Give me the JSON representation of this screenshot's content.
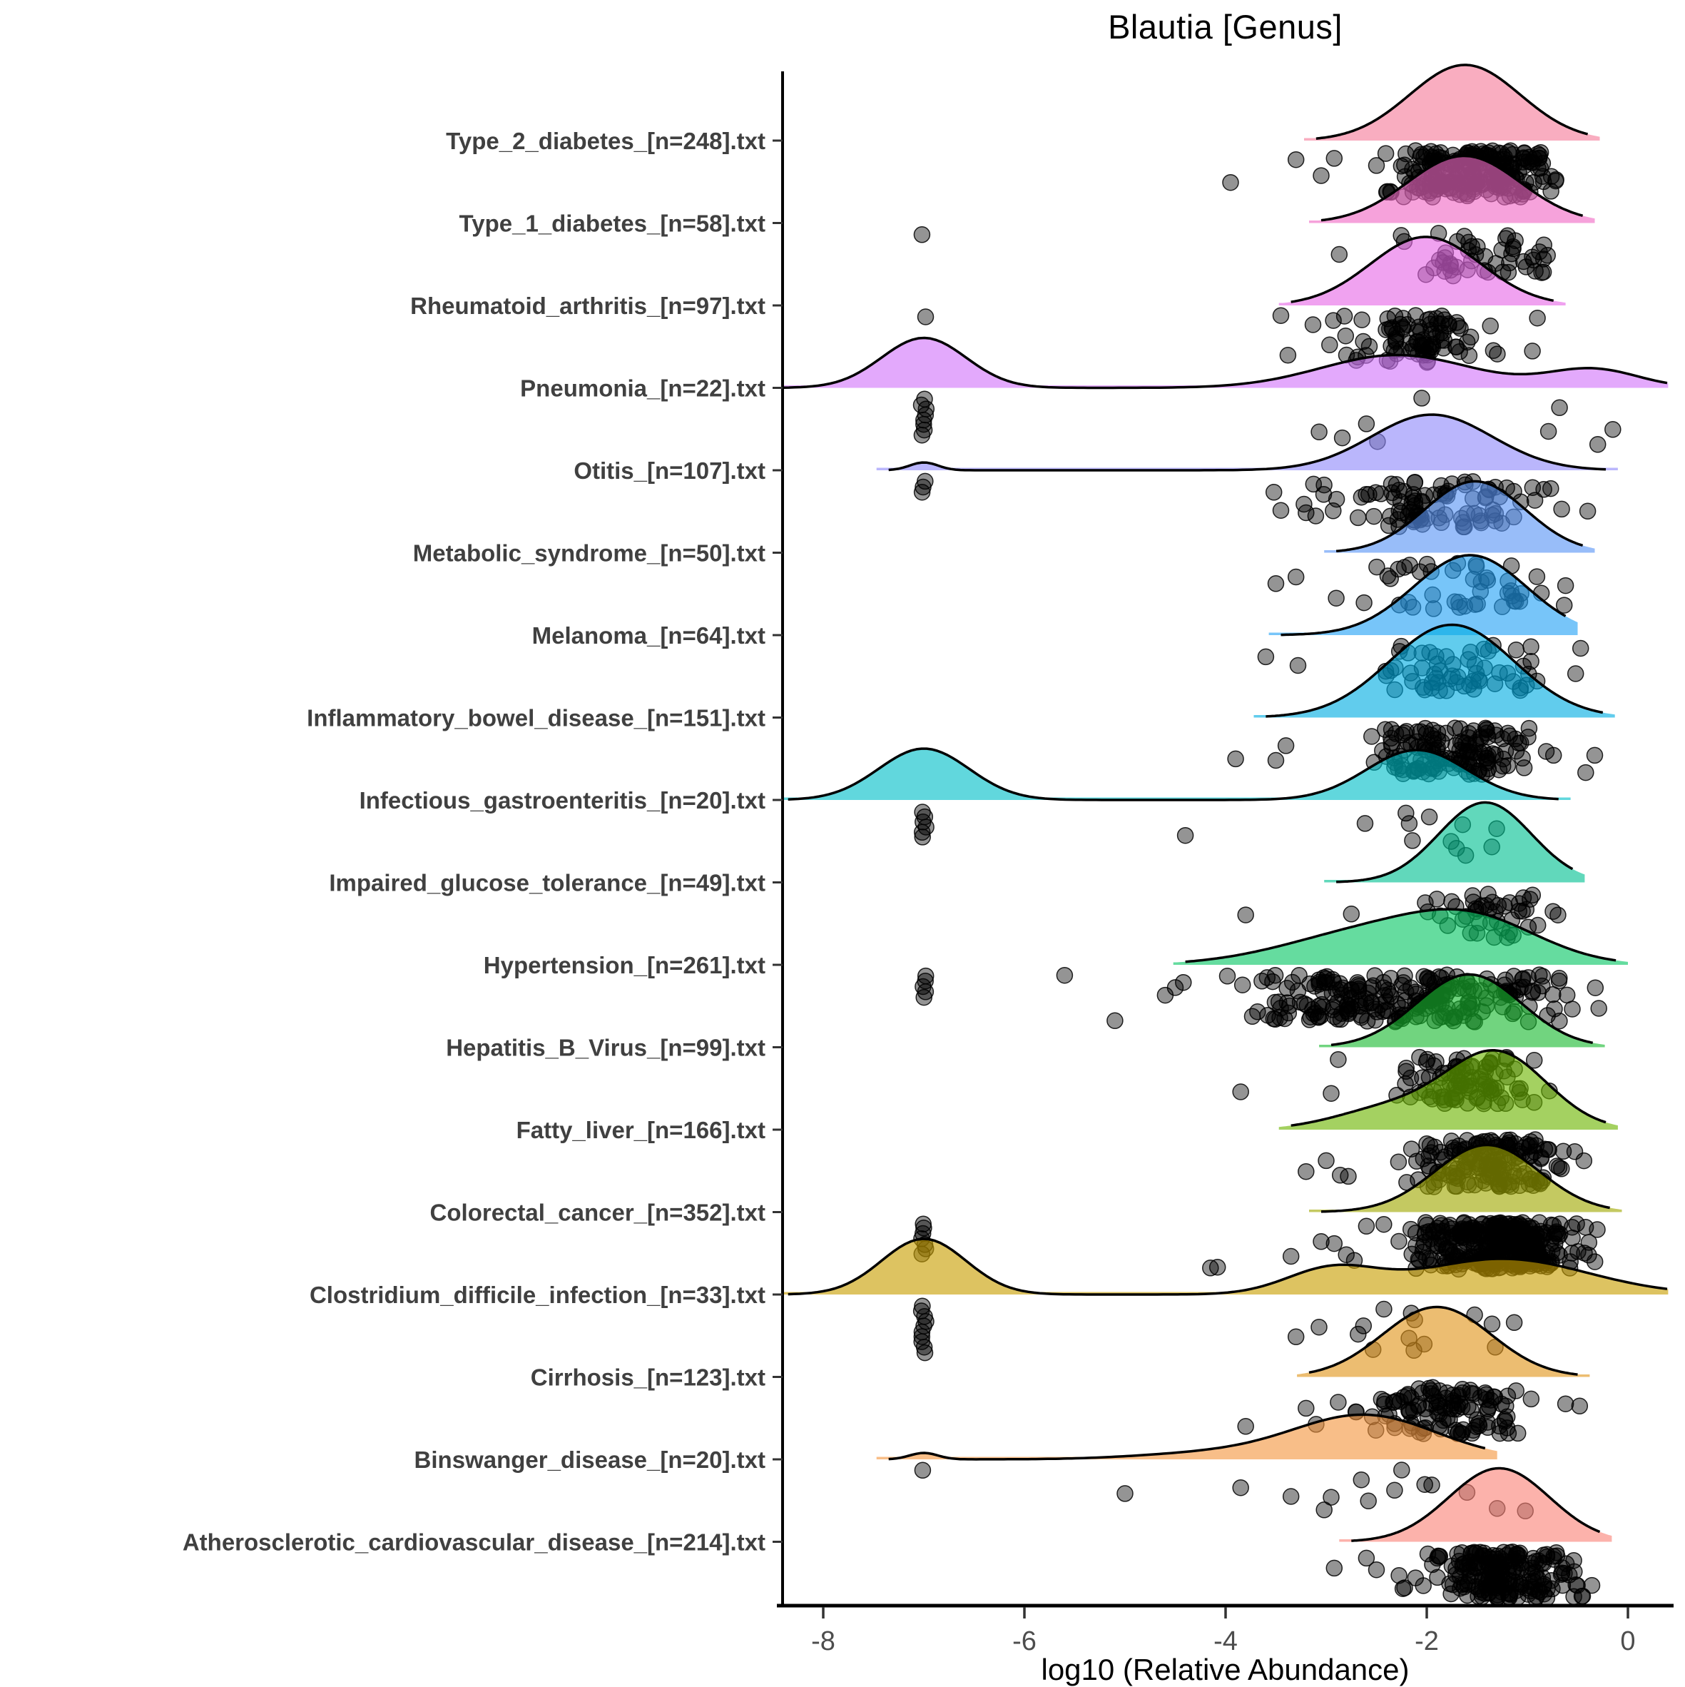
{
  "chart_data": {
    "type": "area",
    "variant": "ridgeline-raincloud (density ridges with jittered points below each baseline)",
    "title": "Blautia [Genus]",
    "xlabel": "log10 (Relative Abundance)",
    "ylabel": "",
    "xlim": [
      -8.4,
      0.4
    ],
    "x_ticks": [
      -8,
      -6,
      -4,
      -2,
      0
    ],
    "grid": "off",
    "legend": "none",
    "point_style": {
      "fill": "#000000",
      "fill_opacity": 0.42,
      "stroke": "#000000",
      "stroke_opacity": 0.85,
      "radius": 11
    },
    "ridge_style": {
      "stroke": "#000000",
      "stroke_width": 3.5,
      "fill_opacity": 0.62
    },
    "axis_color": "#000000",
    "tick_label_color": "#4d4d4d",
    "category_label_color": "#404040",
    "categories_top_to_bottom": [
      "Type_2_diabetes_[n=248].txt",
      "Type_1_diabetes_[n=58].txt",
      "Rheumatoid_arthritis_[n=97].txt",
      "Pneumonia_[n=22].txt",
      "Otitis_[n=107].txt",
      "Metabolic_syndrome_[n=50].txt",
      "Melanoma_[n=64].txt",
      "Inflammatory_bowel_disease_[n=151].txt",
      "Infectious_gastroenteritis_[n=20].txt",
      "Impaired_glucose_tolerance_[n=49].txt",
      "Hypertension_[n=261].txt",
      "Hepatitis_B_Virus_[n=99].txt",
      "Fatty_liver_[n=166].txt",
      "Colorectal_cancer_[n=352].txt",
      "Clostridium_difficile_infection_[n=33].txt",
      "Cirrhosis_[n=123].txt",
      "Binswanger_disease_[n=20].txt",
      "Atherosclerotic_cardiovascular_disease_[n=214].txt"
    ],
    "rows": [
      {
        "key": "type-2-diabetes",
        "label": "Type_2_diabetes_[n=248].txt",
        "n": 248,
        "color": "#F57A99",
        "span": [
          -3.1,
          -0.4
        ],
        "bumps": [
          {
            "c": -1.62,
            "s": 0.55,
            "h": 106
          }
        ],
        "stack_at_minus7": 0,
        "cluster": {
          "n": 235,
          "mean": -1.55,
          "sd": 0.42,
          "min": -3.05,
          "max": -0.68
        },
        "extra_points": [
          -3.95,
          -3.3,
          -3.05,
          -2.92
        ]
      },
      {
        "key": "type-1-diabetes",
        "label": "Type_1_diabetes_[n=58].txt",
        "n": 58,
        "color": "#F069C5",
        "span": [
          -3.05,
          -0.45
        ],
        "bumps": [
          {
            "c": -1.63,
            "s": 0.56,
            "h": 94
          }
        ],
        "stack_at_minus7": 1,
        "cluster": {
          "n": 46,
          "mean": -1.45,
          "sd": 0.36,
          "min": -2.6,
          "max": -0.82
        },
        "extra_points": [
          -2.87,
          -0.88,
          -0.84,
          -0.8
        ]
      },
      {
        "key": "rheumatoid-arthritis",
        "label": "Rheumatoid_arthritis_[n=97].txt",
        "n": 97,
        "color": "#E669E6",
        "span": [
          -3.35,
          -0.74
        ],
        "bumps": [
          {
            "c": -2.01,
            "s": 0.55,
            "h": 96
          }
        ],
        "stack_at_minus7": 1,
        "cluster": {
          "n": 88,
          "mean": -2.05,
          "sd": 0.36,
          "min": -3.15,
          "max": -1.05
        },
        "extra_points": [
          -3.45,
          -3.38,
          -0.95,
          -0.9
        ]
      },
      {
        "key": "pneumonia",
        "label": "Pneumonia_[n=22].txt",
        "n": 22,
        "color": "#D275FA",
        "span": [
          -8.4,
          0.39
        ],
        "bumps": [
          {
            "c": -7.0,
            "s": 0.42,
            "h": 70
          },
          {
            "c": -2.3,
            "s": 0.75,
            "h": 46
          },
          {
            "c": -0.35,
            "s": 0.45,
            "h": 26
          }
        ],
        "stack_at_minus7": 8,
        "cluster": {
          "n": 0
        },
        "extra_points": [
          -3.07,
          -2.84,
          -2.6,
          -2.49,
          -2.05,
          -0.79,
          -0.68,
          -0.3,
          -0.15
        ]
      },
      {
        "key": "otitis",
        "label": "Otitis_[n=107].txt",
        "n": 107,
        "color": "#8F89FA",
        "span": [
          -7.35,
          -0.22
        ],
        "bumps": [
          {
            "c": -7.0,
            "s": 0.14,
            "h": 11
          },
          {
            "c": -1.95,
            "s": 0.6,
            "h": 78
          }
        ],
        "stack_at_minus7": 3,
        "cluster": {
          "n": 96,
          "mean": -1.95,
          "sd": 0.5,
          "min": -3.3,
          "max": -0.45
        },
        "extra_points": [
          -3.52,
          -3.45,
          -0.4
        ]
      },
      {
        "key": "metabolic-syndrome",
        "label": "Metabolic_syndrome_[n=50].txt",
        "n": 50,
        "color": "#5994F6",
        "span": [
          -2.9,
          -0.45
        ],
        "bumps": [
          {
            "c": -1.52,
            "s": 0.5,
            "h": 100
          }
        ],
        "stack_at_minus7": 0,
        "cluster": {
          "n": 44,
          "mean": -1.6,
          "sd": 0.48,
          "min": -2.75,
          "max": -0.55
        },
        "extra_points": [
          -3.5,
          -3.3,
          -2.9
        ]
      },
      {
        "key": "melanoma",
        "label": "Melanoma_[n=64].txt",
        "n": 64,
        "color": "#23A1F6",
        "span": [
          -3.45,
          -0.62
        ],
        "bumps": [
          {
            "c": -1.57,
            "s": 0.56,
            "h": 112
          }
        ],
        "stack_at_minus7": 0,
        "cluster": {
          "n": 58,
          "mean": -1.7,
          "sd": 0.44,
          "min": -3.0,
          "max": -0.62
        },
        "extra_points": [
          -3.6,
          -3.28,
          -0.52,
          -0.47
        ]
      },
      {
        "key": "inflammatory-bowel-disease",
        "label": "Inflammatory_bowel_disease_[n=151].txt",
        "n": 151,
        "color": "#00ACE2",
        "span": [
          -3.6,
          -0.25
        ],
        "bumps": [
          {
            "c": -1.75,
            "s": 0.62,
            "h": 130
          }
        ],
        "stack_at_minus7": 0,
        "cluster": {
          "n": 140,
          "mean": -1.7,
          "sd": 0.38,
          "min": -2.85,
          "max": -0.7
        },
        "extra_points": [
          -3.9,
          -3.5,
          -3.4,
          -0.42,
          -0.33
        ]
      },
      {
        "key": "infectious-gastroenteritis",
        "label": "Infectious_gastroenteritis_[n=20].txt",
        "n": 20,
        "color": "#00BEC8",
        "span": [
          -8.35,
          -0.69
        ],
        "bumps": [
          {
            "c": -7.0,
            "s": 0.45,
            "h": 72
          },
          {
            "c": -2.1,
            "s": 0.5,
            "h": 70
          }
        ],
        "stack_at_minus7": 6,
        "cluster": {
          "n": 11,
          "mean": -2.1,
          "sd": 0.38,
          "min": -2.85,
          "max": -1.25
        },
        "extra_points": [
          -4.4
        ]
      },
      {
        "key": "impaired-glucose-tolerance",
        "label": "Impaired_glucose_tolerance_[n=49].txt",
        "n": 49,
        "color": "#00C091",
        "span": [
          -2.9,
          -0.55
        ],
        "bumps": [
          {
            "c": -1.42,
            "s": 0.46,
            "h": 112
          }
        ],
        "stack_at_minus7": 0,
        "cluster": {
          "n": 45,
          "mean": -1.42,
          "sd": 0.36,
          "min": -2.45,
          "max": -0.6
        },
        "extra_points": [
          -3.8,
          -2.75
        ]
      },
      {
        "key": "hypertension",
        "label": "Hypertension_[n=261].txt",
        "n": 261,
        "color": "#06C764",
        "span": [
          -4.4,
          -0.12
        ],
        "bumps": [
          {
            "c": -2.55,
            "s": 0.85,
            "h": 46
          },
          {
            "c": -1.5,
            "s": 0.65,
            "h": 52
          }
        ],
        "stack_at_minus7": 5,
        "cluster": {
          "n": 240,
          "mean": -2.15,
          "sd": 0.8,
          "min": -4.3,
          "max": -0.25
        },
        "extra_points": [
          -5.6,
          -5.1,
          -4.6,
          -4.5,
          -4.42
        ]
      },
      {
        "key": "hepatitis-b-virus",
        "label": "Hepatitis_B_Virus_[n=99].txt",
        "n": 99,
        "color": "#1AB930",
        "span": [
          -2.95,
          -0.35
        ],
        "bumps": [
          {
            "c": -1.58,
            "s": 0.52,
            "h": 102
          }
        ],
        "stack_at_minus7": 0,
        "cluster": {
          "n": 92,
          "mean": -1.58,
          "sd": 0.4,
          "min": -2.8,
          "max": -0.6
        },
        "extra_points": [
          -3.85,
          -2.95,
          -2.88
        ]
      },
      {
        "key": "fatty-liver",
        "label": "Fatty_liver_[n=166].txt",
        "n": 166,
        "color": "#6CB400",
        "span": [
          -3.35,
          -0.22
        ],
        "bumps": [
          {
            "c": -1.3,
            "s": 0.5,
            "h": 106
          },
          {
            "c": -2.35,
            "s": 0.55,
            "h": 30
          }
        ],
        "stack_at_minus7": 0,
        "cluster": {
          "n": 158,
          "mean": -1.38,
          "sd": 0.42,
          "min": -2.6,
          "max": -0.38
        },
        "extra_points": [
          -3.2,
          -3.0,
          -2.86,
          -2.78
        ]
      },
      {
        "key": "colorectal-cancer",
        "label": "Colorectal_cancer_[n=352].txt",
        "n": 352,
        "color": "#A0A800",
        "span": [
          -3.05,
          -0.18
        ],
        "bumps": [
          {
            "c": -1.4,
            "s": 0.52,
            "h": 94
          }
        ],
        "stack_at_minus7": 7,
        "cluster": {
          "n": 330,
          "mean": -1.32,
          "sd": 0.4,
          "min": -2.55,
          "max": -0.28
        },
        "extra_points": [
          -4.15,
          -4.08,
          -3.35,
          -3.05,
          -2.92,
          -2.8,
          -2.72,
          -2.6
        ]
      },
      {
        "key": "clostridium-difficile-infection",
        "label": "Clostridium_difficile_infection_[n=33].txt",
        "n": 33,
        "color": "#C89E00",
        "span": [
          -8.35,
          0.39
        ],
        "bumps": [
          {
            "c": -7.0,
            "s": 0.42,
            "h": 78
          },
          {
            "c": -2.95,
            "s": 0.45,
            "h": 34
          },
          {
            "c": -1.25,
            "s": 0.85,
            "h": 50
          }
        ],
        "stack_at_minus7": 10,
        "cluster": {
          "n": 14,
          "mean": -1.75,
          "sd": 0.72,
          "min": -3.1,
          "max": -0.6
        },
        "extra_points": [
          -3.3
        ]
      },
      {
        "key": "cirrhosis",
        "label": "Cirrhosis_[n=123].txt",
        "n": 123,
        "color": "#E1941A",
        "span": [
          -3.17,
          -0.5
        ],
        "bumps": [
          {
            "c": -1.9,
            "s": 0.54,
            "h": 98
          }
        ],
        "stack_at_minus7": 0,
        "cluster": {
          "n": 112,
          "mean": -1.78,
          "sd": 0.4,
          "min": -2.72,
          "max": -0.95
        },
        "extra_points": [
          -3.8,
          -3.2,
          -3.1,
          -2.88,
          -0.62,
          -0.48
        ]
      },
      {
        "key": "binswanger-disease",
        "label": "Binswanger_disease_[n=20].txt",
        "n": 20,
        "color": "#F3963F",
        "span": [
          -7.35,
          -1.42
        ],
        "bumps": [
          {
            "c": -7.0,
            "s": 0.14,
            "h": 9
          },
          {
            "c": -4.2,
            "s": 0.7,
            "h": 8
          },
          {
            "c": -2.62,
            "s": 0.72,
            "h": 62
          }
        ],
        "stack_at_minus7": 1,
        "cluster": {
          "n": 0
        },
        "extra_points": [
          -5.0,
          -3.85,
          -3.35,
          -3.02,
          -2.95,
          -2.65,
          -2.58,
          -2.32,
          -2.25,
          -2.02,
          -1.95,
          -1.6,
          -1.3,
          -1.02
        ]
      },
      {
        "key": "atherosclerotic-cardiovascular-disease",
        "label": "Atherosclerotic_cardiovascular_disease_[n=214].txt",
        "n": 214,
        "color": "#FA8278",
        "span": [
          -2.75,
          -0.28
        ],
        "bumps": [
          {
            "c": -1.28,
            "s": 0.5,
            "h": 103
          }
        ],
        "stack_at_minus7": 0,
        "cluster": {
          "n": 200,
          "mean": -1.22,
          "sd": 0.36,
          "min": -2.3,
          "max": -0.3
        },
        "extra_points": [
          -2.92,
          -2.6,
          -2.5
        ]
      }
    ]
  }
}
